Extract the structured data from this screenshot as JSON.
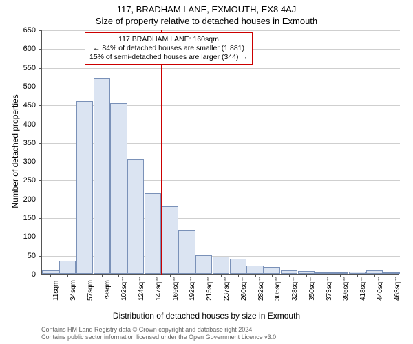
{
  "title_main": "117, BRADHAM LANE, EXMOUTH, EX8 4AJ",
  "title_sub": "Size of property relative to detached houses in Exmouth",
  "y_axis_title": "Number of detached properties",
  "x_axis_title": "Distribution of detached houses by size in Exmouth",
  "chart": {
    "type": "histogram",
    "ylim": [
      0,
      650
    ],
    "ytick_step": 50,
    "x_categories": [
      "11sqm",
      "34sqm",
      "57sqm",
      "79sqm",
      "102sqm",
      "124sqm",
      "147sqm",
      "169sqm",
      "192sqm",
      "215sqm",
      "237sqm",
      "260sqm",
      "282sqm",
      "305sqm",
      "328sqm",
      "350sqm",
      "373sqm",
      "395sqm",
      "418sqm",
      "440sqm",
      "463sqm"
    ],
    "values": [
      10,
      35,
      460,
      520,
      455,
      305,
      215,
      180,
      115,
      50,
      45,
      40,
      22,
      18,
      10,
      8,
      3,
      2,
      5,
      10,
      3
    ],
    "bar_fill": "#dbe4f2",
    "bar_border": "#7a91b8",
    "grid_color": "#cfcfcf",
    "axis_color": "#555555",
    "background_color": "#ffffff",
    "title_fontsize": 13,
    "label_fontsize": 12,
    "tick_fontsize": 11,
    "x_tick_fontsize": 10,
    "marker": {
      "position_category_index": 7,
      "color": "#cc0000",
      "label_line1": "117 BRADHAM LANE: 160sqm",
      "label_line2": "← 84% of detached houses are smaller (1,881)",
      "label_line3": "15% of semi-detached houses are larger (344) →"
    }
  },
  "attribution_line1": "Contains HM Land Registry data © Crown copyright and database right 2024.",
  "attribution_line2": "Contains public sector information licensed under the Open Government Licence v3.0."
}
